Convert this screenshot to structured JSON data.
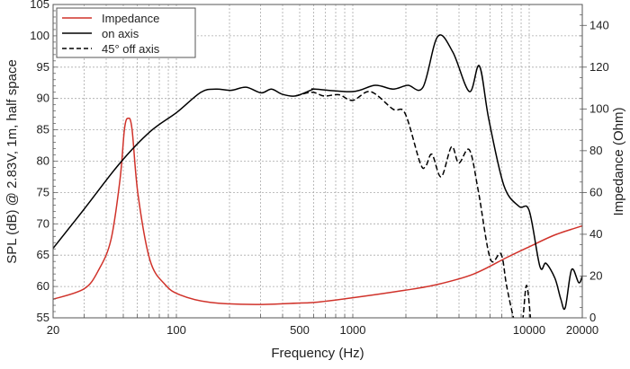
{
  "chart_data": {
    "type": "line",
    "title": "",
    "xlabel": "Frequency (Hz)",
    "ylabel": "SPL (dB) @ 2.83V, 1m, half space",
    "y2label": "Impedance (Ohm)",
    "xscale": "log",
    "xlim": [
      20,
      20000
    ],
    "ylim": [
      55,
      105
    ],
    "y2lim": [
      0,
      150
    ],
    "grid": true,
    "legend_position": "top-left",
    "x_ticks": [
      20,
      100,
      500,
      1000,
      10000,
      20000
    ],
    "x_tick_labels": [
      "20",
      "100",
      "500",
      "1000",
      "10000",
      "20000"
    ],
    "y_ticks": [
      "55",
      "60",
      "65",
      "70",
      "75",
      "80",
      "85",
      "90",
      "95",
      "100",
      "105"
    ],
    "y2_ticks": [
      "0",
      "20",
      "40",
      "60",
      "80",
      "100",
      "120",
      "140"
    ],
    "colors": {
      "impedance": "#d0322a",
      "on_axis": "#000000",
      "off_axis": "#000000"
    },
    "series": [
      {
        "name": "Impedance",
        "axis": "right",
        "style": "solid",
        "color": "#d0322a",
        "points": [
          [
            20,
            8.9
          ],
          [
            30,
            13.9
          ],
          [
            36.4,
            23.2
          ],
          [
            42.6,
            37.5
          ],
          [
            47.9,
            66.2
          ],
          [
            50.8,
            90.5
          ],
          [
            53.2,
            95.5
          ],
          [
            56,
            90.5
          ],
          [
            60.6,
            59
          ],
          [
            70.9,
            27.5
          ],
          [
            86.1,
            16
          ],
          [
            104.8,
            11
          ],
          [
            155,
            7.4
          ],
          [
            279,
            6.4
          ],
          [
            502,
            7.1
          ],
          [
            611,
            7.4
          ],
          [
            1000,
            9.6
          ],
          [
            1980,
            13.2
          ],
          [
            3030,
            16
          ],
          [
            4850,
            21
          ],
          [
            7470,
            28.9
          ],
          [
            10000,
            34
          ],
          [
            14000,
            39.7
          ],
          [
            20000,
            44
          ]
        ]
      },
      {
        "name": "on axis",
        "axis": "left",
        "style": "solid",
        "color": "#000000",
        "points": [
          [
            20,
            66.1
          ],
          [
            29.9,
            72.3
          ],
          [
            47.9,
            79.7
          ],
          [
            70.9,
            84.7
          ],
          [
            100.7,
            87.8
          ],
          [
            137.8,
            91
          ],
          [
            167.6,
            91.5
          ],
          [
            204,
            91.3
          ],
          [
            248,
            91.8
          ],
          [
            302,
            90.9
          ],
          [
            346,
            91.5
          ],
          [
            396,
            90.7
          ],
          [
            473,
            90.4
          ],
          [
            587,
            91.4
          ],
          [
            611,
            91.5
          ],
          [
            1000,
            91.1
          ],
          [
            1336,
            92.1
          ],
          [
            1690,
            91.5
          ],
          [
            2050,
            92.1
          ],
          [
            2500,
            91.8
          ],
          [
            3030,
            99.9
          ],
          [
            3690,
            97.4
          ],
          [
            4580,
            91.1
          ],
          [
            5220,
            95.2
          ],
          [
            5900,
            86.7
          ],
          [
            7190,
            76.1
          ],
          [
            8740,
            72.8
          ],
          [
            10000,
            72.1
          ],
          [
            11500,
            63.2
          ],
          [
            12450,
            63.7
          ],
          [
            14000,
            61.3
          ],
          [
            15100,
            58
          ],
          [
            16000,
            56.6
          ],
          [
            17400,
            62.7
          ],
          [
            19100,
            60.6
          ],
          [
            20000,
            61.7
          ]
        ]
      },
      {
        "name": "45° off axis",
        "axis": "left",
        "style": "dashed",
        "color": "#000000",
        "points": [
          [
            473,
            90.4
          ],
          [
            587,
            91.0
          ],
          [
            687,
            90.4
          ],
          [
            834,
            90.6
          ],
          [
            1000,
            89.7
          ],
          [
            1260,
            91.1
          ],
          [
            1690,
            88.3
          ],
          [
            1980,
            87.6
          ],
          [
            2410,
            79.7
          ],
          [
            2590,
            79.2
          ],
          [
            2810,
            81.1
          ],
          [
            3170,
            77.5
          ],
          [
            3630,
            82.3
          ],
          [
            3990,
            79.7
          ],
          [
            4580,
            81.8
          ],
          [
            5150,
            75.2
          ],
          [
            6020,
            64.4
          ],
          [
            6920,
            65.2
          ],
          [
            7470,
            59.9
          ],
          [
            8360,
            54
          ],
          [
            9100,
            54
          ],
          [
            9660,
            60.2
          ],
          [
            10240,
            54
          ]
        ]
      }
    ]
  }
}
